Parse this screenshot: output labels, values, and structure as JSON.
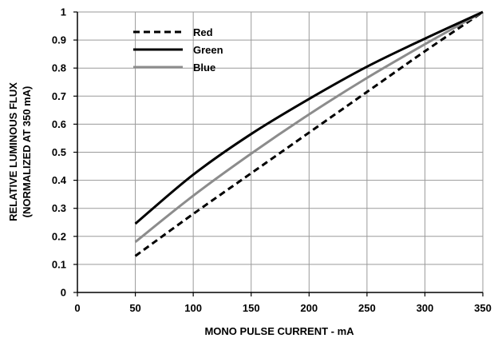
{
  "chart_data": {
    "type": "line",
    "title": "",
    "xlabel": "MONO PULSE CURRENT  - mA",
    "ylabel": [
      "RELATIVE LUMINOUS FLUX",
      "(NORMALIZED AT 350 mA)"
    ],
    "xlim": [
      0,
      350
    ],
    "ylim": [
      0,
      1
    ],
    "xticks": [
      0,
      50,
      100,
      150,
      200,
      250,
      300,
      350
    ],
    "yticks": [
      0,
      0.1,
      0.2,
      0.3,
      0.4,
      0.5,
      0.6,
      0.7,
      0.8,
      0.9,
      1
    ],
    "ytick_labels": [
      "0",
      "0.1",
      "0.2",
      "0.3",
      "0.4",
      "0.5",
      "0.6",
      "0.7",
      "0.8",
      "0.9",
      "1"
    ],
    "grid": true,
    "legend_position": "top-left",
    "x": [
      50,
      100,
      150,
      200,
      250,
      300,
      350
    ],
    "series": [
      {
        "name": "Red",
        "color": "#000000",
        "dash": "dashed",
        "values": [
          0.13,
          0.28,
          0.425,
          0.57,
          0.715,
          0.86,
          1.0
        ]
      },
      {
        "name": "Green",
        "color": "#000000",
        "dash": "solid",
        "values": [
          0.245,
          0.42,
          0.565,
          0.69,
          0.805,
          0.905,
          1.0
        ]
      },
      {
        "name": "Blue",
        "color": "#8c8c8c",
        "dash": "solid",
        "values": [
          0.18,
          0.345,
          0.495,
          0.635,
          0.765,
          0.885,
          1.0
        ]
      }
    ]
  }
}
